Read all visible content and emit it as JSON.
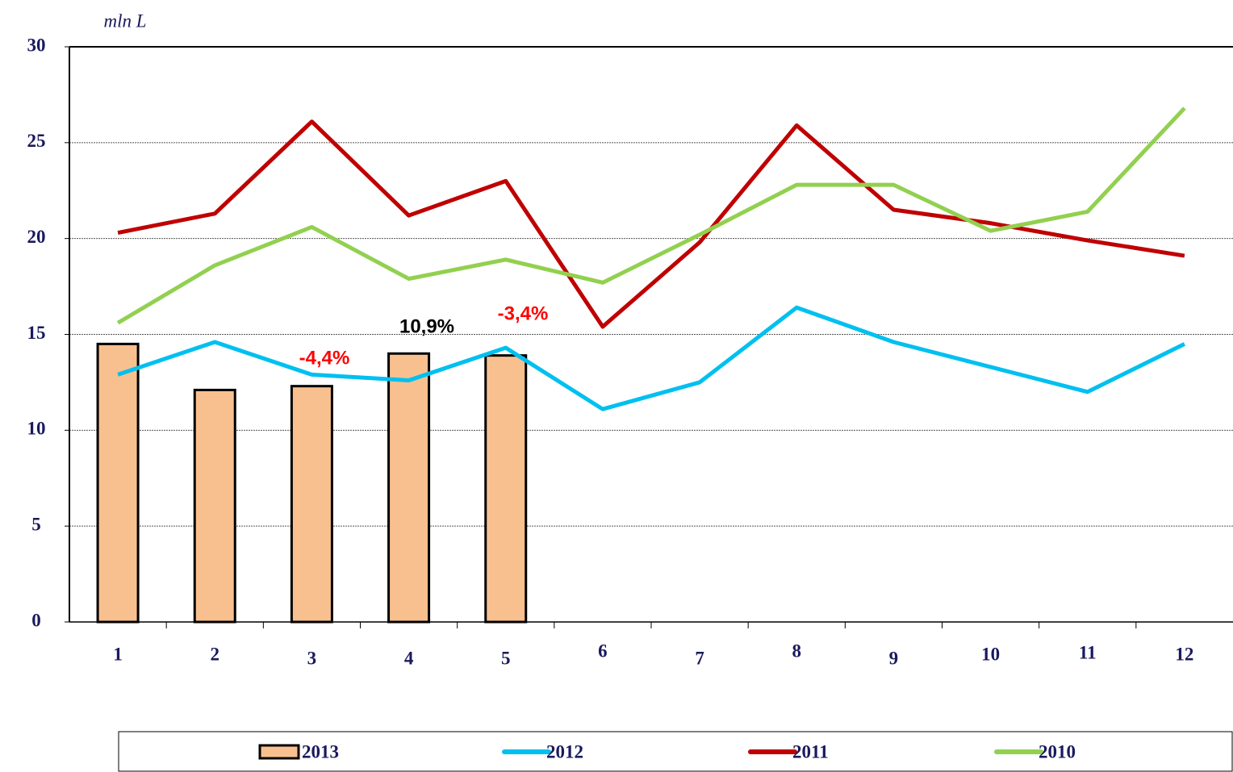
{
  "chart_data": {
    "type": "bar",
    "y_label": "mln L",
    "categories": [
      "1",
      "2",
      "3",
      "4",
      "5",
      "6",
      "7",
      "8",
      "9",
      "10",
      "11",
      "12"
    ],
    "series": [
      {
        "name": "2013",
        "type": "bar",
        "color": "#f9c08f",
        "values": [
          14.5,
          12.1,
          12.3,
          14.0,
          13.9,
          null,
          null,
          null,
          null,
          null,
          null,
          null
        ]
      },
      {
        "name": "2012",
        "type": "line",
        "color": "#00c0f0",
        "values": [
          12.9,
          14.6,
          12.9,
          12.6,
          14.3,
          11.1,
          12.5,
          16.4,
          14.6,
          13.3,
          12.0,
          14.5
        ]
      },
      {
        "name": "2011",
        "type": "line",
        "color": "#c00000",
        "values": [
          20.3,
          21.3,
          26.1,
          21.2,
          23.0,
          15.4,
          19.8,
          25.9,
          21.5,
          20.8,
          19.9,
          19.1
        ]
      },
      {
        "name": "2010",
        "type": "line",
        "color": "#92d050",
        "values": [
          15.6,
          18.6,
          20.6,
          17.9,
          18.9,
          17.7,
          20.2,
          22.8,
          22.8,
          20.4,
          21.4,
          26.8
        ]
      }
    ],
    "annotations": [
      {
        "text": "-4,4%",
        "color": "#ff0000"
      },
      {
        "text": "10,9%",
        "color": "#000000"
      },
      {
        "text": "-3,4%",
        "color": "#ff0000"
      }
    ],
    "ylim": [
      0,
      30
    ],
    "yticks": [
      0,
      5,
      10,
      15,
      20,
      25,
      30
    ],
    "grid": true
  }
}
